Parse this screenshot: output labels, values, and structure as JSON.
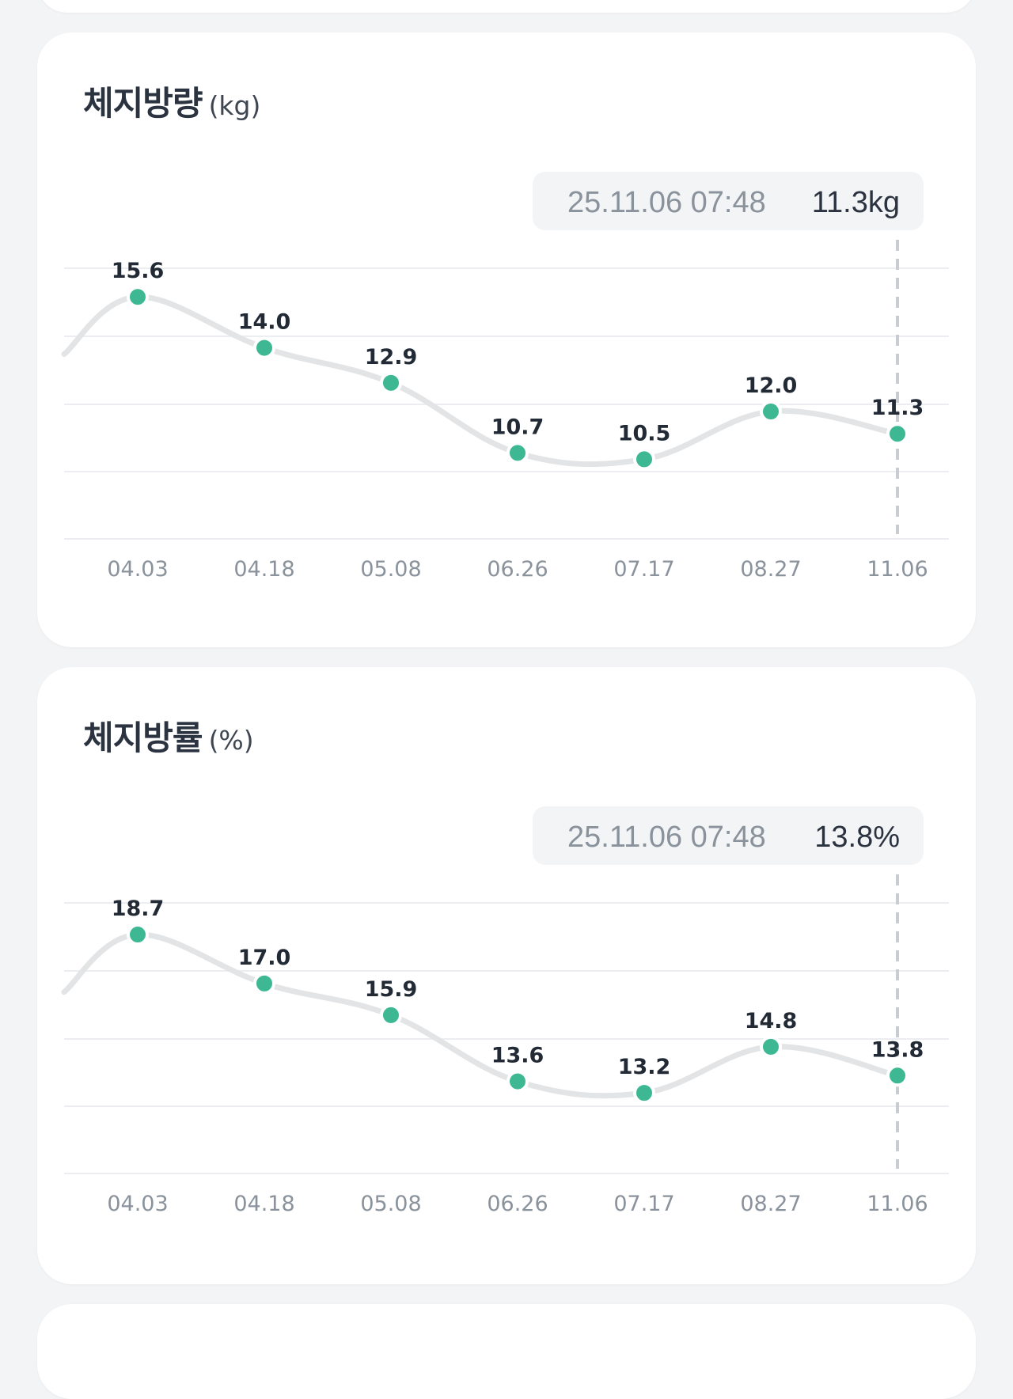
{
  "cards": [
    {
      "id": "fat-mass",
      "title": "체지방량",
      "unit": "(kg)",
      "tooltip": {
        "date": "25.11.06 07:48",
        "value": "11.3kg"
      },
      "chart_data": {
        "type": "line",
        "categories": [
          "04.03",
          "04.18",
          "05.08",
          "06.26",
          "07.17",
          "08.27",
          "11.06"
        ],
        "values": [
          15.6,
          14.0,
          12.9,
          10.7,
          10.5,
          12.0,
          11.3
        ],
        "value_labels": [
          "15.6",
          "14.0",
          "12.9",
          "10.7",
          "10.5",
          "12.0",
          "11.3"
        ],
        "ylim": [
          8.0,
          16.5
        ],
        "lead_in_value": 13.8,
        "grid": true,
        "selected_index": 6,
        "colors": {
          "point": "#3db892",
          "line": "#e3e4e6"
        }
      }
    },
    {
      "id": "fat-pct",
      "title": "체지방률",
      "unit": "(%)",
      "tooltip": {
        "date": "25.11.06 07:48",
        "value": "13.8%"
      },
      "chart_data": {
        "type": "line",
        "categories": [
          "04.03",
          "04.18",
          "05.08",
          "06.26",
          "07.17",
          "08.27",
          "11.06"
        ],
        "values": [
          18.7,
          17.0,
          15.9,
          13.6,
          13.2,
          14.8,
          13.8
        ],
        "value_labels": [
          "18.7",
          "17.0",
          "15.9",
          "13.6",
          "13.2",
          "14.8",
          "13.8"
        ],
        "ylim": [
          10.4,
          19.8
        ],
        "lead_in_value": 16.7,
        "grid": true,
        "selected_index": 6,
        "colors": {
          "point": "#3db892",
          "line": "#e3e4e6"
        }
      }
    }
  ]
}
